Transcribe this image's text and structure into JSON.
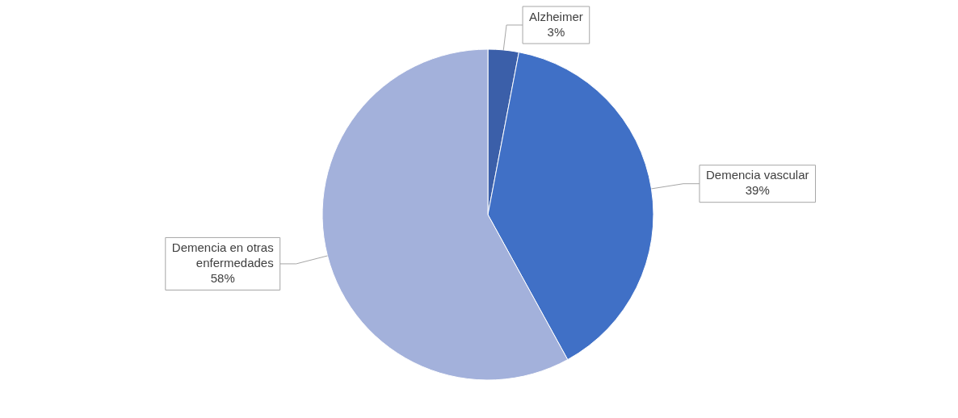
{
  "chart_data": {
    "type": "pie",
    "categories": [
      "Alzheimer",
      "Demencia vascular",
      "Demencia en otras enfermedades"
    ],
    "values": [
      3,
      39,
      58
    ],
    "colors": [
      "#3b5fa9",
      "#4070c6",
      "#a3b1db"
    ],
    "value_labels": [
      "3%",
      "39%",
      "58%"
    ],
    "legend": false
  }
}
